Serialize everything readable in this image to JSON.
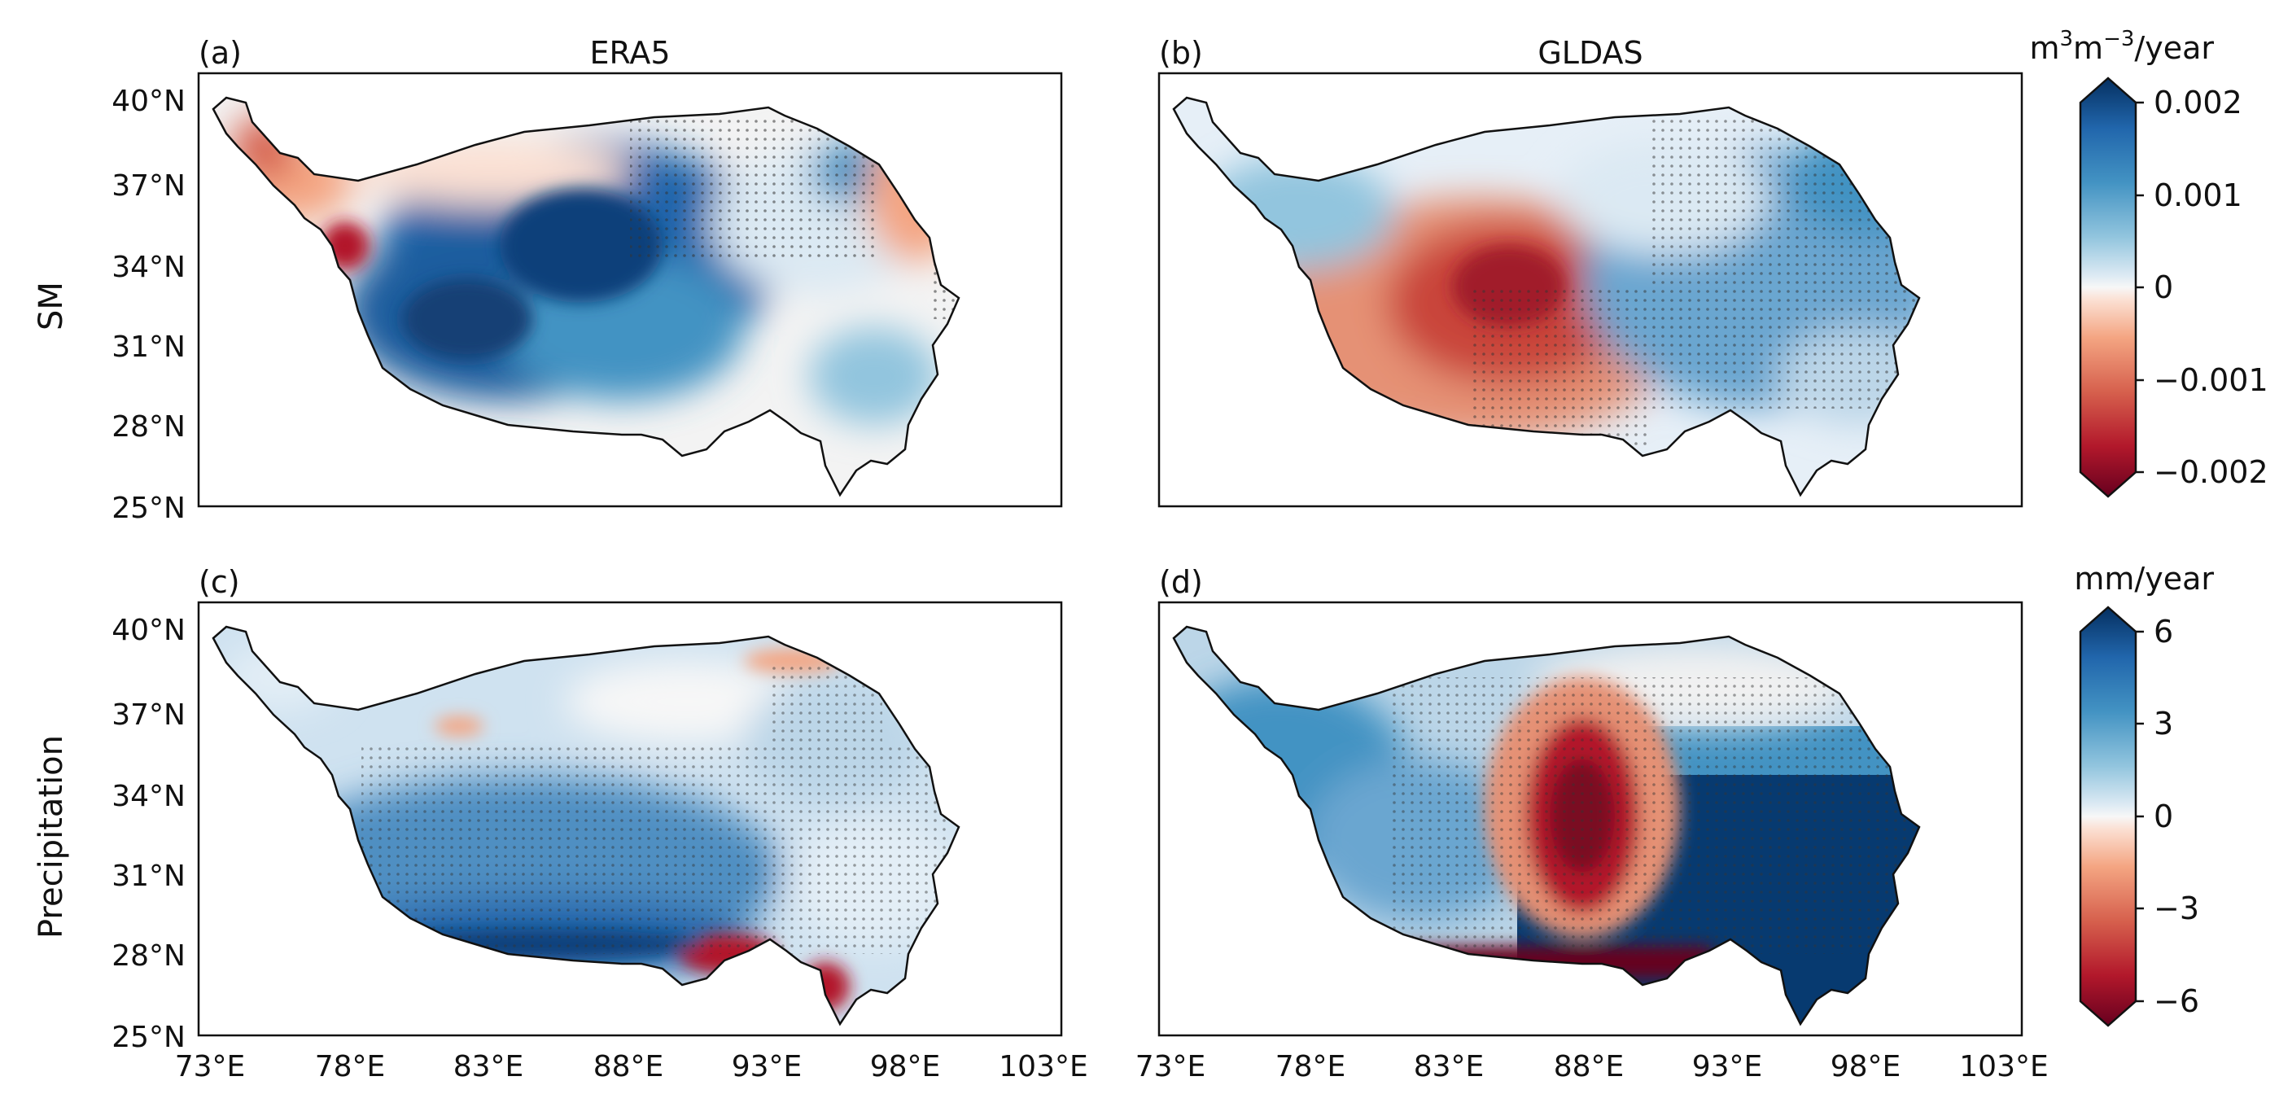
{
  "figure": {
    "row_labels": [
      "SM",
      "Precipitation"
    ],
    "lat_ticks": [
      "40°N",
      "37°N",
      "34°N",
      "31°N",
      "28°N",
      "25°N"
    ],
    "lon_ticks": [
      "73°E",
      "78°E",
      "83°E",
      "88°E",
      "93°E",
      "98°E",
      "103°E"
    ]
  },
  "panels": [
    {
      "id": "a",
      "label": "(a)",
      "title": "ERA5",
      "variable": "SM"
    },
    {
      "id": "b",
      "label": "(b)",
      "title": "GLDAS",
      "variable": "SM"
    },
    {
      "id": "c",
      "label": "(c)",
      "title": "",
      "variable": "Precipitation"
    },
    {
      "id": "d",
      "label": "(d)",
      "title": "",
      "variable": "Precipitation"
    }
  ],
  "colorbars": [
    {
      "id": "sm",
      "unit_base": "m",
      "unit_sup1": "3",
      "unit_mid": "m",
      "unit_sup2": "−3",
      "unit_tail": "/year",
      "ticks": [
        "0.002",
        "0.001",
        "0",
        "−0.001",
        "−0.002"
      ],
      "range": [
        -0.002,
        0.002
      ]
    },
    {
      "id": "precip",
      "unit": "mm/year",
      "ticks": [
        "6",
        "3",
        "0",
        "−3",
        "−6"
      ],
      "range": [
        -6,
        6
      ]
    }
  ],
  "colors": {
    "negative_strong": "#67001f",
    "negative": "#d6604d",
    "neutral": "#f7f7f7",
    "positive": "#4393c3",
    "positive_strong": "#053061",
    "outline": "#111111",
    "stipple": "#333333"
  }
}
